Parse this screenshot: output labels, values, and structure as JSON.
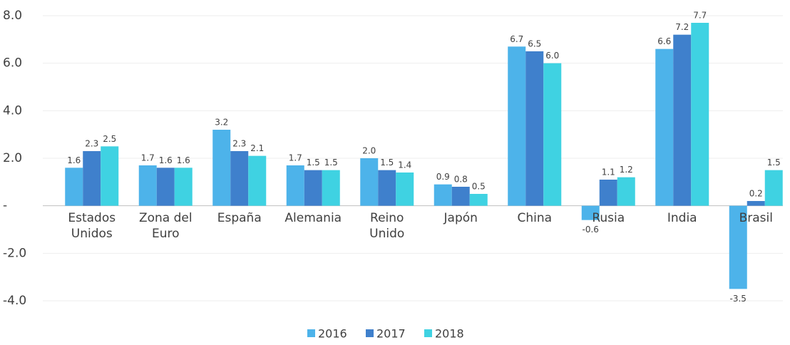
{
  "chart_data": {
    "type": "bar",
    "categories": [
      "Estados Unidos",
      "Zona del Euro",
      "España",
      "Alemania",
      "Reino Unido",
      "Japón",
      "China",
      "Rusia",
      "India",
      "Brasil"
    ],
    "series": [
      {
        "name": "2016",
        "color": "#4db3ea",
        "values": [
          1.6,
          1.7,
          3.2,
          1.7,
          2.0,
          0.9,
          6.7,
          -0.6,
          6.6,
          -3.5
        ],
        "value_labels": [
          "1.6",
          "1.7",
          "3.2",
          "1.7",
          "2.0",
          "0.9",
          "6.7",
          "-0.6",
          "6.6",
          "-3.5"
        ]
      },
      {
        "name": "2017",
        "color": "#3f80cc",
        "values": [
          2.3,
          1.6,
          2.3,
          1.5,
          1.5,
          0.8,
          6.5,
          1.1,
          7.2,
          0.2
        ],
        "value_labels": [
          "2.3",
          "1.6",
          "2.3",
          "1.5",
          "1.5",
          "0.8",
          "6.5",
          "1.1",
          "7.2",
          "0.2"
        ]
      },
      {
        "name": "2018",
        "color": "#3fd2e2",
        "values": [
          2.5,
          1.6,
          2.1,
          1.5,
          1.4,
          0.5,
          6.0,
          1.2,
          7.7,
          1.5
        ],
        "value_labels": [
          "2.5",
          "1.6",
          "2.1",
          "1.5",
          "1.4",
          "0.5",
          "6.0",
          "1.2",
          "7.7",
          "1.5"
        ]
      }
    ],
    "ylim": [
      -4,
      8
    ],
    "yticks": [
      {
        "value": -4,
        "label": "-4.0"
      },
      {
        "value": -2,
        "label": "-2.0"
      },
      {
        "value": 0,
        "label": "-"
      },
      {
        "value": 2,
        "label": "2.0"
      },
      {
        "value": 4,
        "label": "4.0"
      },
      {
        "value": 6,
        "label": "6.0"
      },
      {
        "value": 8,
        "label": "8.0"
      }
    ],
    "grid": true,
    "legend": "bottom"
  }
}
